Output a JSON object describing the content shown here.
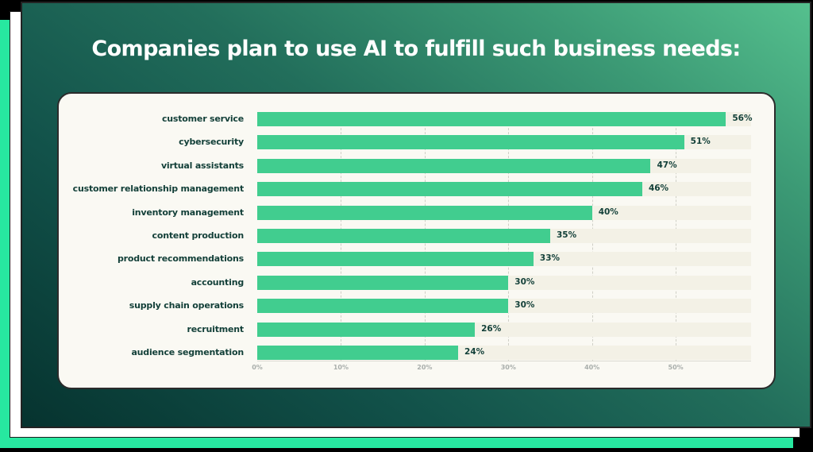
{
  "title": "Companies plan to use AI to fulfill such business needs:",
  "colors": {
    "bar": "#41cd8f",
    "track": "#f3f1e6",
    "label": "#123f38",
    "card": "#faf9f3",
    "panel_dark": "#06332f",
    "panel_light": "#55c08e",
    "accent_layer": "#27e8a0"
  },
  "chart_data": {
    "type": "bar",
    "orientation": "horizontal",
    "title": "Companies plan to use AI to fulfill such business needs:",
    "categories": [
      "customer service",
      "cybersecurity",
      "virtual assistants",
      "customer relationship management",
      "inventory management",
      "content production",
      "product recommendations",
      "accounting",
      "supply chain operations",
      "recruitment",
      "audience segmentation"
    ],
    "values": [
      56,
      51,
      47,
      46,
      40,
      35,
      33,
      30,
      30,
      26,
      24
    ],
    "value_labels": [
      "56%",
      "51%",
      "47%",
      "46%",
      "40%",
      "35%",
      "33%",
      "30%",
      "30%",
      "26%",
      "24%"
    ],
    "xlabel": "",
    "ylabel": "",
    "xlim": [
      0,
      59
    ],
    "x_ticks": [
      "0%",
      "10%",
      "20%",
      "30%",
      "40%",
      "50%"
    ],
    "grid": true,
    "legend": null
  }
}
